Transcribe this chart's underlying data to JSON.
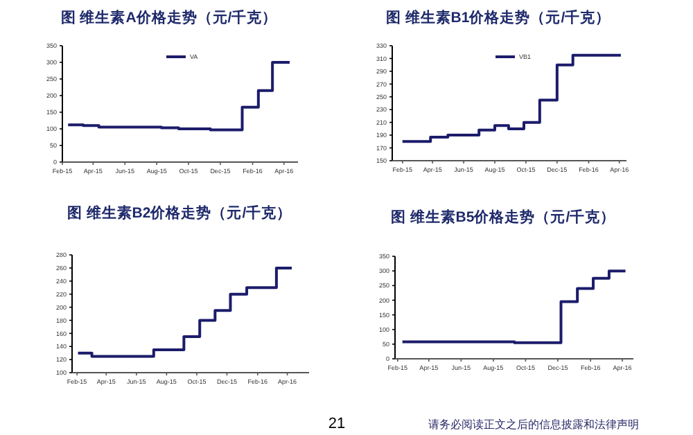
{
  "chart_data": [
    {
      "type": "step",
      "title": "图 维生素A价格走势（元/千克）",
      "legend": "top",
      "xlim": [
        "2015-02-01",
        "2016-04-28"
      ],
      "ylim": [
        0,
        350
      ],
      "yticks": [
        0,
        50,
        100,
        150,
        200,
        250,
        300,
        350
      ],
      "xticks": [
        {
          "value": "2015-02-01",
          "label": "Feb-15"
        },
        {
          "value": "2015-04-01",
          "label": "Apr-15"
        },
        {
          "value": "2015-06-01",
          "label": "Jun-15"
        },
        {
          "value": "2015-08-01",
          "label": "Aug-15"
        },
        {
          "value": "2015-10-01",
          "label": "Oct-15"
        },
        {
          "value": "2015-12-01",
          "label": "Dec-15"
        },
        {
          "value": "2016-02-01",
          "label": "Feb-16"
        },
        {
          "value": "2016-04-01",
          "label": "Apr-16"
        }
      ],
      "x": [
        "2015-02-12",
        "2015-03-13",
        "2015-04-12",
        "2015-08-10",
        "2015-09-12",
        "2015-11-12",
        "2016-01-12",
        "2016-02-12",
        "2016-03-10",
        "2016-04-12"
      ],
      "series": [
        {
          "name": "VA",
          "color": "#1c1c6b",
          "values": [
            112,
            110,
            105,
            103,
            100,
            97,
            165,
            215,
            300,
            300
          ]
        }
      ]
    },
    {
      "type": "step",
      "title": "图 维生素B1价格走势（元/千克）",
      "legend": "top",
      "xlim": [
        "2015-01-12",
        "2016-04-15"
      ],
      "ylim": [
        150,
        330
      ],
      "yticks": [
        150,
        170,
        190,
        210,
        230,
        250,
        270,
        290,
        310,
        330
      ],
      "xticks": [
        {
          "value": "2015-02-01",
          "label": "Feb-15"
        },
        {
          "value": "2015-04-01",
          "label": "Apr-15"
        },
        {
          "value": "2015-06-01",
          "label": "Jun-15"
        },
        {
          "value": "2015-08-01",
          "label": "Aug-15"
        },
        {
          "value": "2015-10-01",
          "label": "Oct-15"
        },
        {
          "value": "2015-12-01",
          "label": "Dec-15"
        },
        {
          "value": "2016-02-01",
          "label": "Feb-16"
        },
        {
          "value": "2016-04-01",
          "label": "Apr-16"
        }
      ],
      "x": [
        "2015-02-01",
        "2015-03-28",
        "2015-05-01",
        "2015-07-01",
        "2015-08-01",
        "2015-08-28",
        "2015-09-27",
        "2015-10-28",
        "2015-12-01",
        "2016-01-01",
        "2016-04-04"
      ],
      "series": [
        {
          "name": "VB1",
          "color": "#1c1c6b",
          "values": [
            180,
            187,
            190,
            198,
            205,
            200,
            210,
            245,
            300,
            315,
            315
          ]
        }
      ]
    },
    {
      "type": "step",
      "title": "图 维生素B2价格走势（元/千克）",
      "xlim": [
        "2015-01-22",
        "2016-05-15"
      ],
      "ylim": [
        100,
        280
      ],
      "yticks": [
        100,
        120,
        140,
        160,
        180,
        200,
        220,
        240,
        260,
        280
      ],
      "xticks": [
        {
          "value": "2015-02-01",
          "label": "Feb-15"
        },
        {
          "value": "2015-04-01",
          "label": "Apr-15"
        },
        {
          "value": "2015-06-01",
          "label": "Jun-15"
        },
        {
          "value": "2015-08-01",
          "label": "Aug-15"
        },
        {
          "value": "2015-10-01",
          "label": "Oct-15"
        },
        {
          "value": "2015-12-01",
          "label": "Dec-15"
        },
        {
          "value": "2016-02-01",
          "label": "Feb-16"
        },
        {
          "value": "2016-04-01",
          "label": "Apr-16"
        }
      ],
      "x": [
        "2015-02-03",
        "2015-03-03",
        "2015-07-06",
        "2015-09-05",
        "2015-10-07",
        "2015-11-07",
        "2015-12-08",
        "2016-01-10",
        "2016-03-10",
        "2016-04-10"
      ],
      "series": [
        {
          "color": "#1c1c6b",
          "values": [
            130,
            125,
            135,
            155,
            180,
            195,
            220,
            230,
            260,
            260
          ]
        }
      ],
      "annotations": [
        "21"
      ]
    },
    {
      "type": "step",
      "title": "图 维生素B5价格走势（元/千克）",
      "xlim": [
        "2015-01-27",
        "2016-04-22"
      ],
      "ylim": [
        0,
        350
      ],
      "yticks": [
        0,
        50,
        100,
        150,
        200,
        250,
        300,
        350
      ],
      "xticks": [
        {
          "value": "2015-02-01",
          "label": "Feb-15"
        },
        {
          "value": "2015-04-01",
          "label": "Apr-15"
        },
        {
          "value": "2015-06-01",
          "label": "Jun-15"
        },
        {
          "value": "2015-08-01",
          "label": "Aug-15"
        },
        {
          "value": "2015-10-01",
          "label": "Oct-15"
        },
        {
          "value": "2015-12-01",
          "label": "Dec-15"
        },
        {
          "value": "2016-02-01",
          "label": "Feb-16"
        },
        {
          "value": "2016-04-01",
          "label": "Apr-16"
        }
      ],
      "x": [
        "2015-02-10",
        "2015-09-10",
        "2015-12-07",
        "2016-01-07",
        "2016-02-06",
        "2016-03-07",
        "2016-04-07"
      ],
      "series": [
        {
          "color": "#1c1c6b",
          "values": [
            58,
            55,
            195,
            240,
            275,
            300,
            300
          ]
        }
      ],
      "annotations": [
        "请务必阅读正文之后的信息披露和法律声明"
      ]
    }
  ]
}
